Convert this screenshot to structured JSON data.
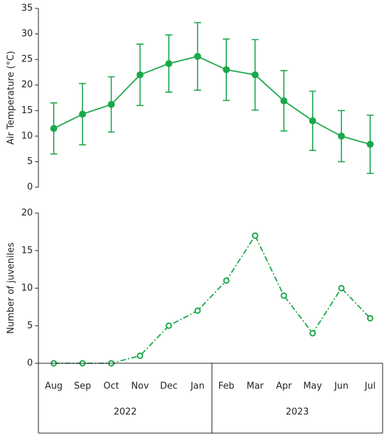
{
  "chart_data": [
    {
      "type": "line",
      "ylabel": "Air Temperature (°C)",
      "ylim": [
        0,
        35
      ],
      "yticks": [
        0,
        5,
        10,
        15,
        20,
        25,
        30,
        35
      ],
      "series": [
        {
          "color": "#1aa84a",
          "linestyle": "solid",
          "marker": "filled",
          "values": [
            11.5,
            14.3,
            16.2,
            22,
            24.2,
            25.6,
            23,
            22,
            16.9,
            13,
            10,
            8.4
          ],
          "errors": [
            5,
            6,
            5.4,
            6,
            5.6,
            6.6,
            6,
            6.9,
            5.9,
            5.8,
            5,
            5.7
          ]
        }
      ]
    },
    {
      "type": "line",
      "ylabel": "Number of juveniles",
      "ylim": [
        0,
        20
      ],
      "yticks": [
        0,
        5,
        10,
        15,
        20
      ],
      "categories": [
        "Aug",
        "Sep",
        "Oct",
        "Nov",
        "Dec",
        "Jan",
        "Feb",
        "Mar",
        "Apr",
        "May",
        "Jun",
        "Jul"
      ],
      "groups": [
        {
          "label": "2022",
          "count": 6
        },
        {
          "label": "2023",
          "count": 6
        }
      ],
      "series": [
        {
          "color": "#1aa84a",
          "linestyle": "dashdot",
          "marker": "hollow",
          "values": [
            0,
            0,
            0,
            1,
            5,
            7,
            11,
            17,
            9,
            4,
            10,
            6
          ]
        }
      ]
    }
  ]
}
